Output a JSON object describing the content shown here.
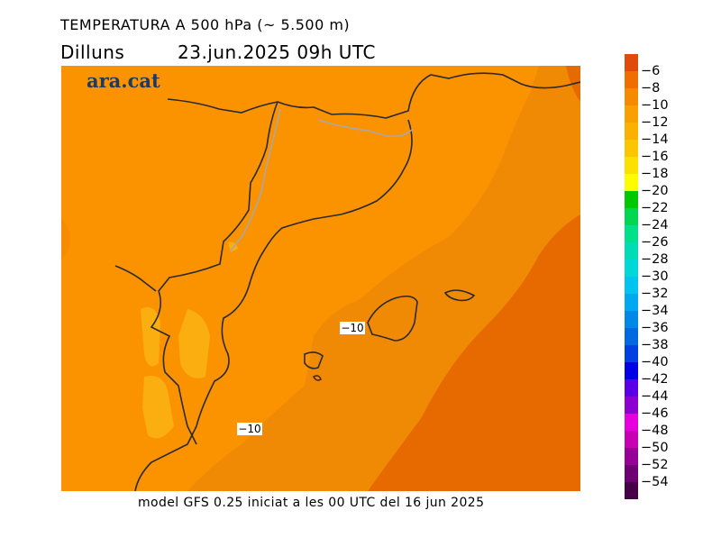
{
  "header": {
    "title": "TEMPERATURA A 500 hPa (~ 5.500 m)",
    "day": "Dilluns",
    "datetime": "23.jun.2025 09h UTC"
  },
  "brand": "ara.cat",
  "footer": "model GFS 0.25 iniciat a les 00 UTC del 16 jun 2025",
  "map": {
    "isoline_labels": [
      "-10",
      "-10"
    ],
    "colors": {
      "band_-12_-10": "#fb9300",
      "band_-10_-8": "#f08a05",
      "band_-8_-6": "#e66a00",
      "band_-14_-12": "#fbae0f",
      "coastline": "#2a2a2a",
      "border": "#a8a8a8"
    }
  },
  "legend": {
    "labels": [
      "-6",
      "-8",
      "-10",
      "-12",
      "-14",
      "-16",
      "-18",
      "-20",
      "-22",
      "-24",
      "-26",
      "-28",
      "-30",
      "-32",
      "-34",
      "-36",
      "-38",
      "-40",
      "-42",
      "-44",
      "-46",
      "-48",
      "-50",
      "-52",
      "-54"
    ],
    "colors": [
      "#e04a0a",
      "#f06e00",
      "#f58a00",
      "#fa9f00",
      "#fbb100",
      "#fbc500",
      "#fbe000",
      "#fffc00",
      "#00c800",
      "#00d650",
      "#00e08a",
      "#00dcb4",
      "#00d8d8",
      "#00c4f0",
      "#00a8f0",
      "#0088e6",
      "#0068e0",
      "#0040e0",
      "#0000e6",
      "#5a00e6",
      "#8c00d0",
      "#e600dc",
      "#c800b4",
      "#960096",
      "#6e0073",
      "#460046"
    ]
  }
}
